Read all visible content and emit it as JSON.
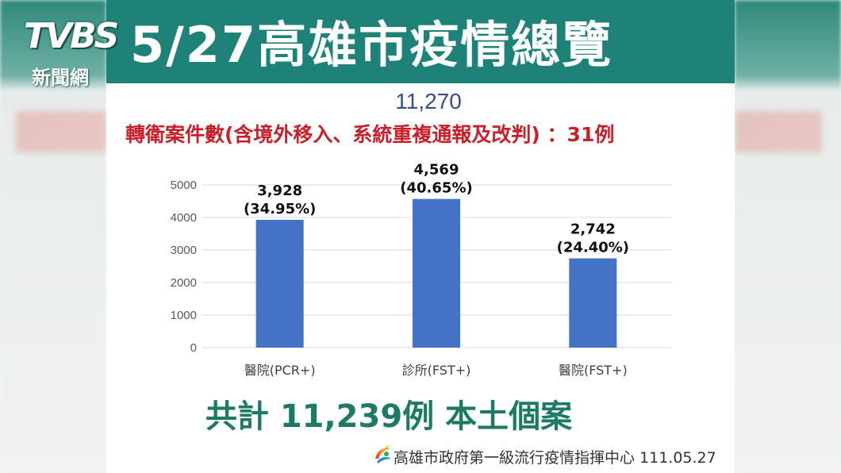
{
  "overlay": {
    "brand": "TVBS",
    "brand_sub": "新聞網"
  },
  "title": "5/27高雄市疫情總覽",
  "total_number": "11,270",
  "transfer_note": "轉衛案件數(含境外移入、系統重複通報及改判) ：31例",
  "chart_data": {
    "type": "bar",
    "categories": [
      "醫院(PCR+)",
      "診所(FST+)",
      "醫院(FST+)"
    ],
    "values": [
      3928,
      4569,
      2742
    ],
    "value_labels": [
      "3,928",
      "4,569",
      "2,742"
    ],
    "percent_labels": [
      "(34.95%)",
      "(40.65%)",
      "(24.40%)"
    ],
    "ylim": [
      0,
      5000
    ],
    "yticks": [
      0,
      1000,
      2000,
      3000,
      4000,
      5000
    ],
    "grid": true,
    "bar_color": "#4472c4"
  },
  "summary": "共計 11,239例 本土個案",
  "source": "高雄市政府第一級流行疫情指揮中心 111.05.27",
  "colors": {
    "header": "#1f8279",
    "summary": "#1c7a66",
    "transfer": "#c8202a",
    "total": "#33508a"
  }
}
